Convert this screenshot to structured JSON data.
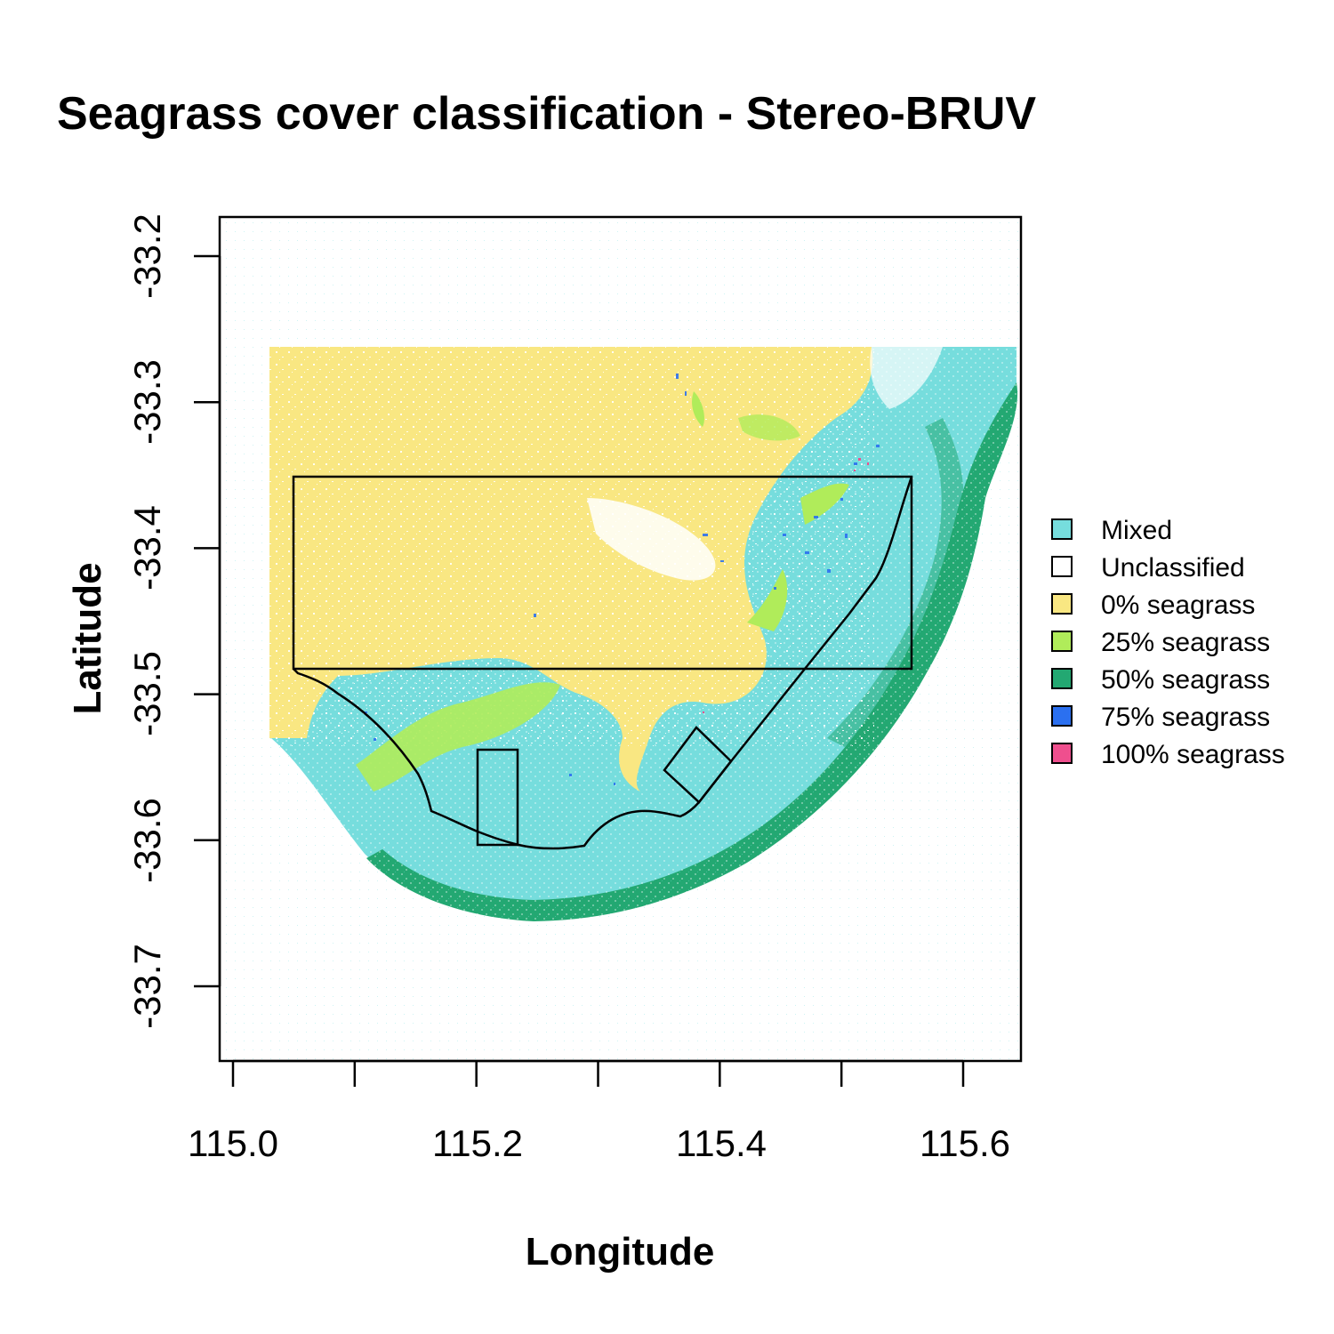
{
  "chart_data": {
    "type": "heatmap",
    "title": "Seagrass cover classification - Stereo-BRUV",
    "xlabel": "Longitude",
    "ylabel": "Latitude",
    "xlim": [
      114.99,
      115.65
    ],
    "ylim": [
      -33.75,
      -33.17
    ],
    "x_ticks": [
      "115.0",
      "115.2",
      "115.4",
      "115.6"
    ],
    "x_tick_values": [
      115.0,
      115.1,
      115.2,
      115.3,
      115.4,
      115.5,
      115.6
    ],
    "y_ticks": [
      "-33.2",
      "-33.3",
      "-33.4",
      "-33.5",
      "-33.6",
      "-33.7"
    ],
    "y_tick_values": [
      -33.2,
      -33.3,
      -33.4,
      -33.5,
      -33.6,
      -33.7
    ],
    "legend_position": "right",
    "legend": [
      {
        "label": "Mixed",
        "color": "#76DDDD"
      },
      {
        "label": "Unclassified",
        "color": "#FFFFFF"
      },
      {
        "label": "0% seagrass",
        "color": "#F9E782"
      },
      {
        "label": "25% seagrass",
        "color": "#B0EC5A"
      },
      {
        "label": "50% seagrass",
        "color": "#23A872"
      },
      {
        "label": "75% seagrass",
        "color": "#2B70F0"
      },
      {
        "label": "100% seagrass",
        "color": "#EF4F8E"
      }
    ],
    "overlay_polygons": [
      {
        "shape": "rectangle",
        "lon": [
          115.05,
          115.555
        ],
        "lat": [
          -33.35,
          -33.482
        ]
      },
      {
        "shape": "inshore-outline",
        "lon": [
          115.05,
          115.555
        ],
        "lat": [
          -33.482,
          -33.61
        ]
      },
      {
        "shape": "rectangle",
        "lon": [
          115.2,
          115.233
        ],
        "lat": [
          -33.542,
          -33.603
        ]
      },
      {
        "shape": "diamond",
        "lon": [
          115.355,
          115.41
        ],
        "lat": [
          -33.523,
          -33.574
        ]
      }
    ]
  }
}
